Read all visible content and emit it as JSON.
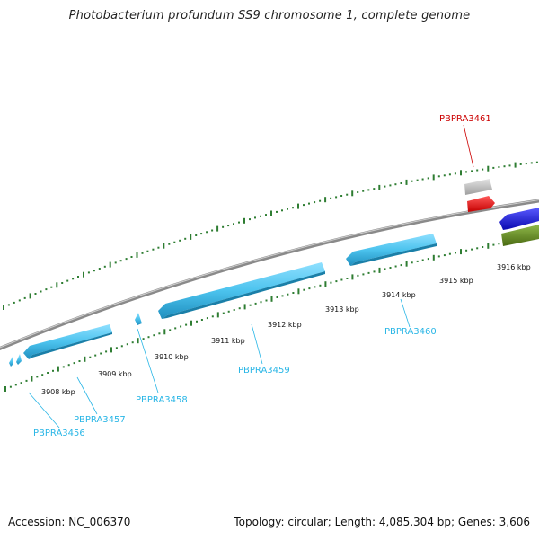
{
  "title": "Photobacterium profundum SS9 chromosome 1, complete genome",
  "footer": {
    "accession": "Accession: NC_006370",
    "summary": "Topology: circular; Length: 4,085,304 bp; Genes: 3,606"
  },
  "colors": {
    "backbone": "#8a8a8a",
    "ticks": "#2e7d32",
    "gene_cyan": "#4cc3ee",
    "gene_cyan_label": "#29b6e6",
    "highlight_label": "#cc0000",
    "gene_grey": "#bdbdbd",
    "gene_red": "#ee1111",
    "gene_blue": "#1a1aee",
    "gene_olive": "#6b8e23"
  },
  "scale_labels": [
    "3908 kbp",
    "3909 kbp",
    "3910 kbp",
    "3911 kbp",
    "3912 kbp",
    "3913 kbp",
    "3914 kbp",
    "3915 kbp",
    "3916 kbp"
  ],
  "gene_labels": [
    "PBPRA3456",
    "PBPRA3457",
    "PBPRA3458",
    "PBPRA3459",
    "PBPRA3460",
    "PBPRA3461"
  ]
}
